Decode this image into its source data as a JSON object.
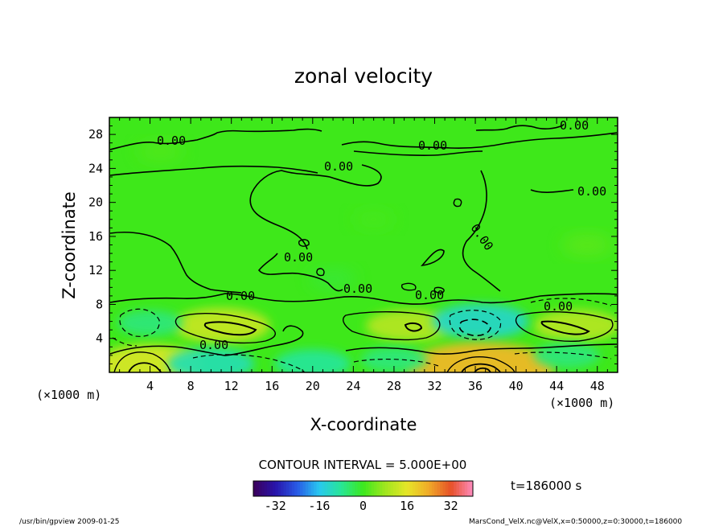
{
  "chart_data": {
    "type": "heatmap",
    "title": "zonal velocity",
    "xlabel": "X-coordinate",
    "ylabel": "Z-coordinate",
    "x_unit": "(×1000 m)",
    "y_unit": "(×1000 m)",
    "xlim": [
      0,
      50
    ],
    "ylim": [
      0,
      30
    ],
    "xticks": [
      "4",
      "8",
      "12",
      "16",
      "20",
      "24",
      "28",
      "32",
      "36",
      "40",
      "44",
      "48"
    ],
    "yticks": [
      "4",
      "8",
      "12",
      "16",
      "20",
      "24",
      "28"
    ],
    "contour_labels": [
      "0.00",
      "0.00",
      "0.00",
      "0.00",
      "0.00",
      "0.00",
      "0.00",
      "0.00",
      "0.00",
      "0.00",
      "0.00",
      "0.00"
    ],
    "contour_interval": "CONTOUR INTERVAL = 5.000E+00",
    "time_label": "t=186000 s",
    "colorbar": {
      "ticks": [
        "-32",
        "-16",
        "0",
        "16",
        "32"
      ],
      "range": [
        -40,
        40
      ]
    },
    "footer_left": "/usr/bin/gpview   2009-01-25",
    "footer_right": "MarsCond_VelX.nc@VelX,x=0:50000,z=0:30000,t=186000",
    "features": [
      {
        "x": 11,
        "z": 5.5,
        "value": 12
      },
      {
        "x": 29.5,
        "z": 5.5,
        "value": 10
      },
      {
        "x": 46,
        "z": 5.5,
        "value": 10
      },
      {
        "x": 36.5,
        "z": 6,
        "value": -12
      },
      {
        "x": 4,
        "z": 5.8,
        "value": -6
      },
      {
        "x": 4,
        "z": 1,
        "value": 14
      },
      {
        "x": 36.5,
        "z": 0.5,
        "value": 22
      },
      {
        "x": 10,
        "z": 1,
        "value": -10
      },
      {
        "x": 20,
        "z": 1,
        "value": -8
      },
      {
        "x": 28,
        "z": 1.5,
        "value": -6
      },
      {
        "x": 45,
        "z": 2,
        "value": -6
      },
      {
        "x": 47,
        "z": 15,
        "value": 3
      },
      {
        "x": 5,
        "z": 26,
        "value": 2
      },
      {
        "x": 22,
        "z": 11,
        "value": -2
      },
      {
        "x": 26,
        "z": 18,
        "value": 1
      }
    ]
  }
}
